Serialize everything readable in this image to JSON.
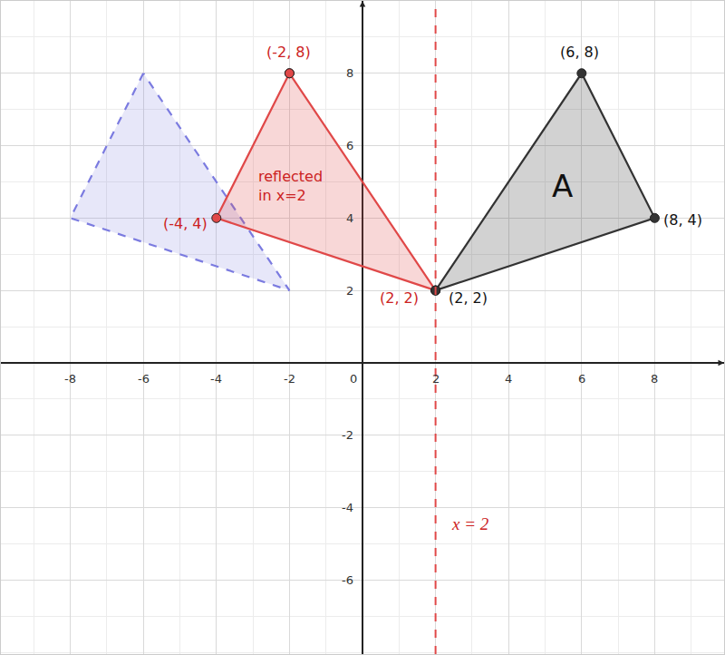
{
  "chart_data": {
    "type": "scatter",
    "xlim": [
      -9.9,
      9.9
    ],
    "ylim": [
      -8.05,
      10
    ],
    "xticks": [
      -8,
      -6,
      -4,
      -2,
      0,
      2,
      4,
      6,
      8
    ],
    "yticks": [
      -6,
      -4,
      -2,
      2,
      4,
      6,
      8
    ],
    "grid": true,
    "series": [
      {
        "type": "polygon",
        "color": "#7b7be0",
        "line_style": "dashed",
        "x": [
          -6,
          -8,
          -2
        ],
        "y": [
          8,
          4,
          2
        ]
      },
      {
        "type": "polygon",
        "color": "#e04848",
        "line_style": "solid",
        "marker": "circle",
        "x": [
          -2,
          -4,
          2
        ],
        "y": [
          8,
          4,
          2
        ]
      },
      {
        "type": "polygon",
        "color": "#333333",
        "line_style": "solid",
        "marker": "circle",
        "x": [
          2,
          6,
          8
        ],
        "y": [
          2,
          8,
          4
        ]
      },
      {
        "type": "line",
        "color": "#e04848",
        "line_style": "dashed",
        "x": [
          2,
          2
        ],
        "y": [
          -8.05,
          10
        ]
      }
    ],
    "annotations": [
      {
        "text": "(-2, 8)",
        "x": -2.02,
        "y": 8.58,
        "color": "#cc2222"
      },
      {
        "text": "(-4, 4)",
        "x": -4.86,
        "y": 3.85,
        "color": "#cc2222"
      },
      {
        "text": "(2, 2)",
        "x": 1.01,
        "y": 1.78,
        "color": "#cc2222"
      },
      {
        "text": "(2, 2)",
        "x": 2.89,
        "y": 1.78,
        "color": "#111111"
      },
      {
        "text": "(6, 8)",
        "x": 5.95,
        "y": 8.58,
        "color": "#111111"
      },
      {
        "text": "(8, 4)",
        "x": 8.77,
        "y": 3.95,
        "color": "#111111"
      },
      {
        "text": "reflected\nin x=2",
        "x": -1.98,
        "y": 4.88,
        "color": "#cc2222"
      },
      {
        "text": "A",
        "x": 5.46,
        "y": 4.88,
        "color": "#111111"
      },
      {
        "text": "x = 2",
        "x": 2.96,
        "y": -4.45,
        "color": "#cc2222"
      }
    ]
  }
}
